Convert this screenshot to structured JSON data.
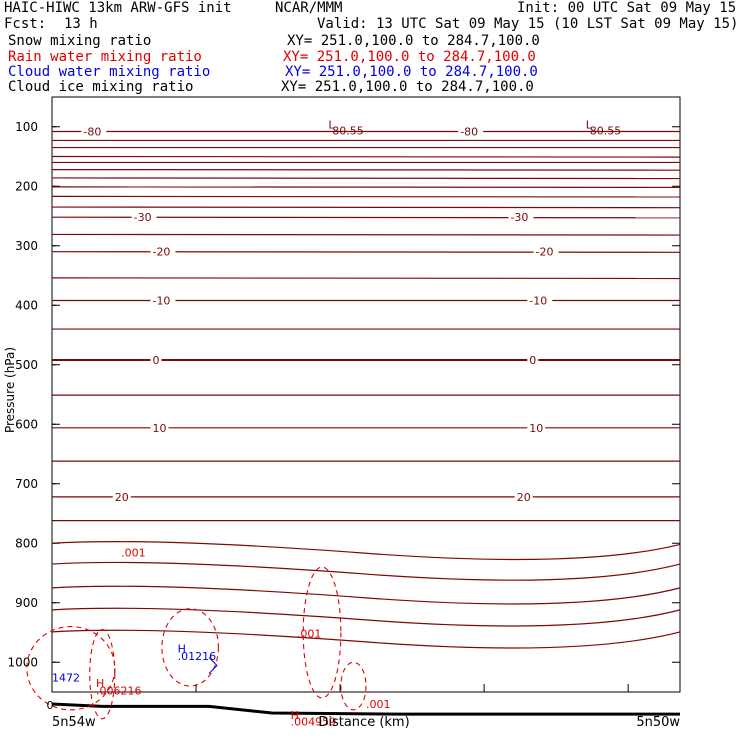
{
  "header": {
    "title": "HAIC-HIWC 13km ARW-GFS init",
    "org": "NCAR/MMM",
    "init": "Init: 00 UTC Sat 09 May 15",
    "fcst_label": "Fcst:",
    "fcst_value": "13 h",
    "valid": "Valid: 13 UTC Sat 09 May 15 (10 LST Sat 09 May 15)",
    "fields": [
      {
        "name": "Snow mixing ratio",
        "xy": "XY= 251.0,100.0 to 284.7,100.0",
        "color": "#000000"
      },
      {
        "name": "Rain water mixing ratio",
        "xy": "XY= 251.0,100.0 to 284.7,100.0",
        "color": "#e00000"
      },
      {
        "name": "Cloud water mixing ratio",
        "xy": "XY= 251.0,100.0 to 284.7,100.0",
        "color": "#0000e0"
      },
      {
        "name": "Cloud ice mixing ratio",
        "xy": "XY= 251.0,100.0 to 284.7,100.0",
        "color": "#000000"
      }
    ]
  },
  "chart_data": {
    "type": "line",
    "ylabel": "Pressure (hPa)",
    "xlabel": "Distance (km)",
    "x_left_label": "5n54w",
    "x_right_label": "5n50w",
    "x_origin_label": "0",
    "yticks": [
      100,
      200,
      300,
      400,
      500,
      600,
      700,
      800,
      900,
      1000
    ],
    "ylim": [
      50,
      1050
    ],
    "xlim": [
      0,
      100
    ],
    "temperature_contours": [
      {
        "value": -80,
        "p": [
          108,
          108
        ],
        "labels": [
          {
            "x": 5,
            "text": "-80"
          },
          {
            "x": 65,
            "text": "-80"
          }
        ]
      },
      {
        "value": -75,
        "p": [
          123,
          123
        ]
      },
      {
        "value": -70,
        "p": [
          135,
          135
        ]
      },
      {
        "value": -65,
        "p": [
          150,
          151
        ]
      },
      {
        "value": -60,
        "p": [
          160,
          160
        ]
      },
      {
        "value": -55,
        "p": [
          172,
          173
        ]
      },
      {
        "value": -50,
        "p": [
          186,
          187
        ]
      },
      {
        "value": -45,
        "p": [
          201,
          202
        ]
      },
      {
        "value": -40,
        "p": [
          217,
          218
        ]
      },
      {
        "value": -35,
        "p": [
          235,
          236
        ]
      },
      {
        "value": -30,
        "p": [
          252,
          253
        ],
        "labels": [
          {
            "x": 13,
            "text": "-30"
          },
          {
            "x": 73,
            "text": "-30"
          }
        ]
      },
      {
        "value": -25,
        "p": [
          281,
          282
        ]
      },
      {
        "value": -20,
        "p": [
          310,
          311
        ],
        "labels": [
          {
            "x": 16,
            "text": "-20"
          },
          {
            "x": 77,
            "text": "-20"
          }
        ]
      },
      {
        "value": -15,
        "p": [
          354,
          355
        ]
      },
      {
        "value": -10,
        "p": [
          392,
          392
        ],
        "labels": [
          {
            "x": 16,
            "text": "-10"
          },
          {
            "x": 76,
            "text": "-10"
          }
        ]
      },
      {
        "value": -5,
        "p": [
          440,
          440
        ]
      },
      {
        "value": 0,
        "p": [
          492,
          492
        ],
        "labels": [
          {
            "x": 16,
            "text": "0"
          },
          {
            "x": 76,
            "text": "0"
          }
        ]
      },
      {
        "value": 5,
        "p": [
          551,
          551
        ]
      },
      {
        "value": 10,
        "p": [
          606,
          606
        ],
        "labels": [
          {
            "x": 16,
            "text": "10"
          },
          {
            "x": 76,
            "text": "10"
          }
        ]
      },
      {
        "value": 15,
        "p": [
          662,
          662
        ]
      },
      {
        "value": 20,
        "p": [
          722,
          722
        ],
        "labels": [
          {
            "x": 10,
            "text": "20"
          },
          {
            "x": 74,
            "text": "20"
          }
        ]
      },
      {
        "value": 25,
        "p": [
          762,
          762
        ]
      },
      {
        "value": 30,
        "p": [
          800,
          802
        ]
      },
      {
        "value": 35,
        "p": [
          835,
          835
        ]
      },
      {
        "value": 40,
        "p": [
          875,
          875
        ]
      },
      {
        "value": 45,
        "p": [
          912,
          912
        ]
      },
      {
        "value": 50,
        "p": [
          949,
          949
        ]
      }
    ],
    "pressure_minimum_labels": [
      {
        "x": 44,
        "p": 103,
        "text": "L"
      },
      {
        "x": 44,
        "p": 113,
        "text": "-80.55"
      },
      {
        "x": 85,
        "p": 103,
        "text": "L"
      },
      {
        "x": 85,
        "p": 113,
        "text": "-80.55"
      }
    ],
    "rain_labels": [
      {
        "x": 11,
        "p": 822,
        "text": ".001"
      },
      {
        "x": 39,
        "p": 958,
        "text": ".001"
      },
      {
        "x": 50,
        "p": 1077,
        "text": ".001"
      },
      {
        "x": 7,
        "p": 1042,
        "text": "H"
      },
      {
        "x": 7,
        "p": 1054,
        "text": ".006216"
      },
      {
        "x": 38,
        "p": 1095,
        "text": "H"
      },
      {
        "x": 38,
        "p": 1106,
        "text": ".004959"
      }
    ],
    "cloud_water_labels": [
      {
        "x": 20,
        "p": 984,
        "text": "H"
      },
      {
        "x": 20,
        "p": 996,
        "text": ".01216"
      },
      {
        "x": 0,
        "p": 1032,
        "text": "1472"
      }
    ]
  }
}
